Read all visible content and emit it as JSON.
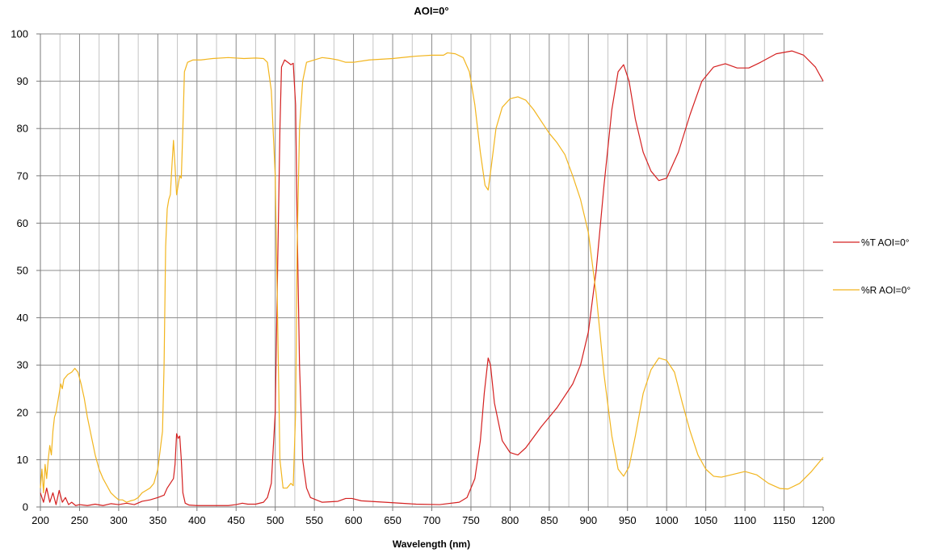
{
  "chart_data": {
    "type": "line",
    "title": "AOI=0°",
    "xlabel": "Wavelength (nm)",
    "ylabel": "",
    "xlim": [
      200,
      1200
    ],
    "ylim": [
      0,
      100
    ],
    "x_ticks": [
      200,
      250,
      300,
      350,
      400,
      450,
      500,
      550,
      600,
      650,
      700,
      750,
      800,
      850,
      900,
      950,
      1000,
      1050,
      1100,
      1150,
      1200
    ],
    "y_ticks": [
      0,
      10,
      20,
      30,
      40,
      50,
      60,
      70,
      80,
      90,
      100
    ],
    "x_minor_step": 25,
    "grid": true,
    "legend_position": "right",
    "series": [
      {
        "name": "%T AOI=0°",
        "color": "#d42020",
        "points": [
          [
            200,
            3
          ],
          [
            204,
            1
          ],
          [
            208,
            4
          ],
          [
            212,
            1
          ],
          [
            216,
            3
          ],
          [
            220,
            0.5
          ],
          [
            224,
            3.5
          ],
          [
            228,
            1
          ],
          [
            232,
            2
          ],
          [
            236,
            0.5
          ],
          [
            240,
            1
          ],
          [
            245,
            0.3
          ],
          [
            250,
            0.5
          ],
          [
            260,
            0.3
          ],
          [
            270,
            0.6
          ],
          [
            280,
            0.3
          ],
          [
            290,
            0.7
          ],
          [
            300,
            0.5
          ],
          [
            310,
            0.8
          ],
          [
            320,
            0.5
          ],
          [
            330,
            1.2
          ],
          [
            340,
            1.5
          ],
          [
            350,
            2
          ],
          [
            358,
            2.5
          ],
          [
            362,
            4
          ],
          [
            366,
            5
          ],
          [
            370,
            6
          ],
          [
            372,
            9
          ],
          [
            374,
            15.5
          ],
          [
            376,
            14.5
          ],
          [
            378,
            15
          ],
          [
            380,
            10
          ],
          [
            382,
            3
          ],
          [
            385,
            0.8
          ],
          [
            390,
            0.4
          ],
          [
            400,
            0.3
          ],
          [
            420,
            0.3
          ],
          [
            440,
            0.3
          ],
          [
            450,
            0.5
          ],
          [
            458,
            0.8
          ],
          [
            465,
            0.6
          ],
          [
            475,
            0.6
          ],
          [
            485,
            1
          ],
          [
            490,
            2
          ],
          [
            495,
            5
          ],
          [
            500,
            20
          ],
          [
            503,
            50
          ],
          [
            506,
            80
          ],
          [
            508,
            93
          ],
          [
            512,
            94.5
          ],
          [
            516,
            94
          ],
          [
            520,
            93.5
          ],
          [
            523,
            93.8
          ],
          [
            526,
            85
          ],
          [
            528,
            60
          ],
          [
            531,
            30
          ],
          [
            535,
            10
          ],
          [
            540,
            4
          ],
          [
            545,
            2
          ],
          [
            560,
            1
          ],
          [
            580,
            1.2
          ],
          [
            590,
            1.8
          ],
          [
            598,
            1.8
          ],
          [
            610,
            1.3
          ],
          [
            640,
            1
          ],
          [
            680,
            0.6
          ],
          [
            710,
            0.5
          ],
          [
            735,
            1
          ],
          [
            745,
            2
          ],
          [
            755,
            6
          ],
          [
            762,
            14
          ],
          [
            767,
            24
          ],
          [
            772,
            31.5
          ],
          [
            775,
            30
          ],
          [
            780,
            22
          ],
          [
            790,
            14
          ],
          [
            800,
            11.5
          ],
          [
            810,
            11
          ],
          [
            820,
            12.5
          ],
          [
            840,
            17
          ],
          [
            860,
            21
          ],
          [
            880,
            26
          ],
          [
            890,
            30
          ],
          [
            900,
            37
          ],
          [
            910,
            50
          ],
          [
            920,
            68
          ],
          [
            930,
            84
          ],
          [
            938,
            92
          ],
          [
            945,
            93.5
          ],
          [
            952,
            90
          ],
          [
            960,
            82
          ],
          [
            970,
            75
          ],
          [
            980,
            71
          ],
          [
            990,
            69
          ],
          [
            1000,
            69.5
          ],
          [
            1015,
            75
          ],
          [
            1030,
            83
          ],
          [
            1045,
            90
          ],
          [
            1060,
            93
          ],
          [
            1075,
            93.7
          ],
          [
            1090,
            92.8
          ],
          [
            1105,
            92.8
          ],
          [
            1120,
            94
          ],
          [
            1140,
            95.8
          ],
          [
            1160,
            96.4
          ],
          [
            1175,
            95.5
          ],
          [
            1190,
            93
          ],
          [
            1200,
            90
          ]
        ]
      },
      {
        "name": "%R AOI=0°",
        "color": "#f2b51e",
        "points": [
          [
            200,
            4
          ],
          [
            202,
            8
          ],
          [
            204,
            3
          ],
          [
            206,
            9
          ],
          [
            208,
            6
          ],
          [
            210,
            10
          ],
          [
            212,
            13
          ],
          [
            214,
            11
          ],
          [
            216,
            16
          ],
          [
            218,
            19
          ],
          [
            220,
            20
          ],
          [
            222,
            22
          ],
          [
            224,
            24
          ],
          [
            226,
            26
          ],
          [
            228,
            25
          ],
          [
            230,
            27
          ],
          [
            235,
            28
          ],
          [
            240,
            28.5
          ],
          [
            244,
            29.3
          ],
          [
            248,
            28.5
          ],
          [
            252,
            26
          ],
          [
            256,
            23
          ],
          [
            260,
            19
          ],
          [
            265,
            15
          ],
          [
            270,
            11
          ],
          [
            275,
            8
          ],
          [
            280,
            6
          ],
          [
            285,
            4.5
          ],
          [
            290,
            3
          ],
          [
            295,
            2.2
          ],
          [
            300,
            1.5
          ],
          [
            305,
            1.5
          ],
          [
            310,
            1
          ],
          [
            315,
            1.3
          ],
          [
            320,
            1.5
          ],
          [
            325,
            2
          ],
          [
            330,
            3
          ],
          [
            335,
            3.5
          ],
          [
            340,
            4
          ],
          [
            345,
            5
          ],
          [
            350,
            8
          ],
          [
            353,
            12
          ],
          [
            356,
            16
          ],
          [
            358,
            30
          ],
          [
            360,
            55
          ],
          [
            362,
            63
          ],
          [
            364,
            65
          ],
          [
            366,
            66
          ],
          [
            368,
            72
          ],
          [
            370,
            77.5
          ],
          [
            372,
            72
          ],
          [
            374,
            66
          ],
          [
            376,
            68
          ],
          [
            378,
            70
          ],
          [
            380,
            69.5
          ],
          [
            382,
            80
          ],
          [
            384,
            92
          ],
          [
            388,
            94
          ],
          [
            395,
            94.5
          ],
          [
            405,
            94.5
          ],
          [
            420,
            94.8
          ],
          [
            440,
            95
          ],
          [
            460,
            94.8
          ],
          [
            475,
            94.9
          ],
          [
            485,
            94.8
          ],
          [
            490,
            94
          ],
          [
            495,
            88
          ],
          [
            500,
            70
          ],
          [
            503,
            40
          ],
          [
            506,
            10
          ],
          [
            510,
            4
          ],
          [
            515,
            4
          ],
          [
            520,
            5
          ],
          [
            523,
            4.5
          ],
          [
            526,
            20
          ],
          [
            528,
            55
          ],
          [
            531,
            80
          ],
          [
            535,
            90
          ],
          [
            540,
            94
          ],
          [
            550,
            94.5
          ],
          [
            560,
            95
          ],
          [
            570,
            94.8
          ],
          [
            580,
            94.5
          ],
          [
            590,
            94
          ],
          [
            600,
            94
          ],
          [
            620,
            94.5
          ],
          [
            650,
            94.8
          ],
          [
            680,
            95.3
          ],
          [
            700,
            95.5
          ],
          [
            715,
            95.5
          ],
          [
            720,
            96
          ],
          [
            730,
            95.8
          ],
          [
            740,
            95
          ],
          [
            748,
            92
          ],
          [
            755,
            85
          ],
          [
            762,
            75
          ],
          [
            768,
            68
          ],
          [
            772,
            67
          ],
          [
            776,
            72
          ],
          [
            782,
            80
          ],
          [
            790,
            84.5
          ],
          [
            800,
            86.3
          ],
          [
            810,
            86.7
          ],
          [
            820,
            86
          ],
          [
            830,
            84
          ],
          [
            840,
            81.5
          ],
          [
            850,
            79
          ],
          [
            860,
            77
          ],
          [
            870,
            74.5
          ],
          [
            880,
            70
          ],
          [
            890,
            65
          ],
          [
            900,
            58
          ],
          [
            910,
            45
          ],
          [
            920,
            28
          ],
          [
            930,
            15
          ],
          [
            938,
            8
          ],
          [
            945,
            6.5
          ],
          [
            952,
            8.5
          ],
          [
            960,
            15
          ],
          [
            970,
            24
          ],
          [
            980,
            29
          ],
          [
            990,
            31.5
          ],
          [
            1000,
            31
          ],
          [
            1010,
            28.5
          ],
          [
            1020,
            22
          ],
          [
            1030,
            16
          ],
          [
            1040,
            11
          ],
          [
            1050,
            8
          ],
          [
            1060,
            6.5
          ],
          [
            1070,
            6.3
          ],
          [
            1085,
            6.9
          ],
          [
            1100,
            7.5
          ],
          [
            1115,
            6.8
          ],
          [
            1130,
            5
          ],
          [
            1145,
            3.9
          ],
          [
            1155,
            3.8
          ],
          [
            1170,
            5
          ],
          [
            1185,
            7.5
          ],
          [
            1200,
            10.5
          ]
        ]
      }
    ]
  }
}
